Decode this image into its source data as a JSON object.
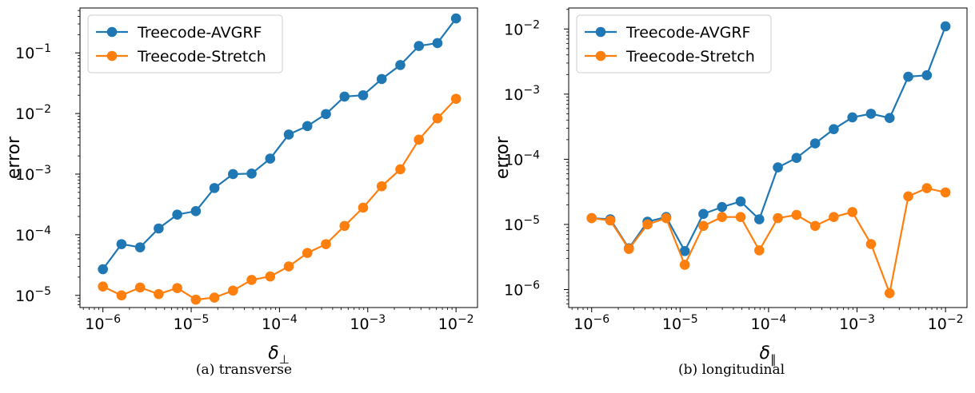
{
  "chart_data": [
    {
      "type": "line",
      "caption": "(a) transverse",
      "xlabel_symbol": "δ",
      "xlabel_sub": "⊥",
      "ylabel": "error",
      "xscale": "log",
      "yscale": "log",
      "xlim": [
        5.5e-07,
        0.0175
      ],
      "ylim": [
        6.3e-06,
        0.55
      ],
      "x_ticks": [
        {
          "value": 1e-06,
          "exp": "−6"
        },
        {
          "value": 1e-05,
          "exp": "−5"
        },
        {
          "value": 0.0001,
          "exp": "−4"
        },
        {
          "value": 0.001,
          "exp": "−3"
        },
        {
          "value": 0.01,
          "exp": "−2"
        }
      ],
      "y_ticks": [
        {
          "value": 1e-05,
          "exp": "−5"
        },
        {
          "value": 0.0001,
          "exp": "−4"
        },
        {
          "value": 0.001,
          "exp": "−3"
        },
        {
          "value": 0.01,
          "exp": "−2"
        },
        {
          "value": 0.1,
          "exp": "−1"
        }
      ],
      "legend_position": "upper left",
      "x": [
        1e-06,
        1.624e-06,
        2.637e-06,
        4.281e-06,
        6.952e-06,
        1.129e-05,
        1.833e-05,
        2.976e-05,
        4.833e-05,
        7.848e-05,
        0.0001274,
        0.0002069,
        0.000336,
        0.0005456,
        0.0008859,
        0.001438,
        0.002336,
        0.003793,
        0.006158,
        0.01
      ],
      "series": [
        {
          "name": "Treecode-AVGRF",
          "color": "#1f77b4",
          "values": [
            2.7e-05,
            7e-05,
            6.2e-05,
            0.000127,
            0.000215,
            0.000245,
            0.00059,
            0.001,
            0.00102,
            0.0018,
            0.0045,
            0.0062,
            0.0098,
            0.019,
            0.02,
            0.037,
            0.063,
            0.13,
            0.145,
            0.37
          ]
        },
        {
          "name": "Treecode-Stretch",
          "color": "#ff7f0e",
          "values": [
            1.4e-05,
            1e-05,
            1.35e-05,
            1.05e-05,
            1.32e-05,
            8.5e-06,
            9.2e-06,
            1.2e-05,
            1.8e-05,
            2.05e-05,
            3e-05,
            5e-05,
            7e-05,
            0.00014,
            0.00028,
            0.00063,
            0.0012,
            0.0037,
            0.0083,
            0.0175
          ]
        }
      ]
    },
    {
      "type": "line",
      "caption": "(b) longitudinal",
      "xlabel_symbol": "δ",
      "xlabel_sub": "∥",
      "ylabel": "error",
      "xscale": "log",
      "yscale": "log",
      "xlim": [
        5.5e-07,
        0.0175
      ],
      "ylim": [
        5.3e-07,
        0.021
      ],
      "x_ticks": [
        {
          "value": 1e-06,
          "exp": "−6"
        },
        {
          "value": 1e-05,
          "exp": "−5"
        },
        {
          "value": 0.0001,
          "exp": "−4"
        },
        {
          "value": 0.001,
          "exp": "−3"
        },
        {
          "value": 0.01,
          "exp": "−2"
        }
      ],
      "y_ticks": [
        {
          "value": 1e-06,
          "exp": "−6"
        },
        {
          "value": 1e-05,
          "exp": "−5"
        },
        {
          "value": 0.0001,
          "exp": "−4"
        },
        {
          "value": 0.001,
          "exp": "−3"
        },
        {
          "value": 0.01,
          "exp": "−2"
        }
      ],
      "legend_position": "upper left",
      "x": [
        1e-06,
        1.624e-06,
        2.637e-06,
        4.281e-06,
        6.952e-06,
        1.129e-05,
        1.833e-05,
        2.976e-05,
        4.833e-05,
        7.848e-05,
        0.0001274,
        0.0002069,
        0.000336,
        0.0005456,
        0.0008859,
        0.001438,
        0.002336,
        0.003793,
        0.006158,
        0.01
      ],
      "series": [
        {
          "name": "Treecode-AVGRF",
          "color": "#1f77b4",
          "values": [
            1.25e-05,
            1.2e-05,
            4.3e-06,
            1.1e-05,
            1.3e-05,
            3.9e-06,
            1.45e-05,
            1.85e-05,
            2.25e-05,
            1.2e-05,
            7.5e-05,
            0.000105,
            0.000175,
            0.00029,
            0.00044,
            0.0005,
            0.00043,
            0.00185,
            0.00195,
            0.011
          ]
        },
        {
          "name": "Treecode-Stretch",
          "color": "#ff7f0e",
          "values": [
            1.25e-05,
            1.15e-05,
            4.2e-06,
            1e-05,
            1.25e-05,
            2.4e-06,
            9.5e-06,
            1.3e-05,
            1.3e-05,
            4e-06,
            1.25e-05,
            1.4e-05,
            9.5e-06,
            1.3e-05,
            1.55e-05,
            5e-06,
            8.8e-07,
            2.7e-05,
            3.6e-05,
            3.1e-05
          ]
        }
      ]
    }
  ]
}
